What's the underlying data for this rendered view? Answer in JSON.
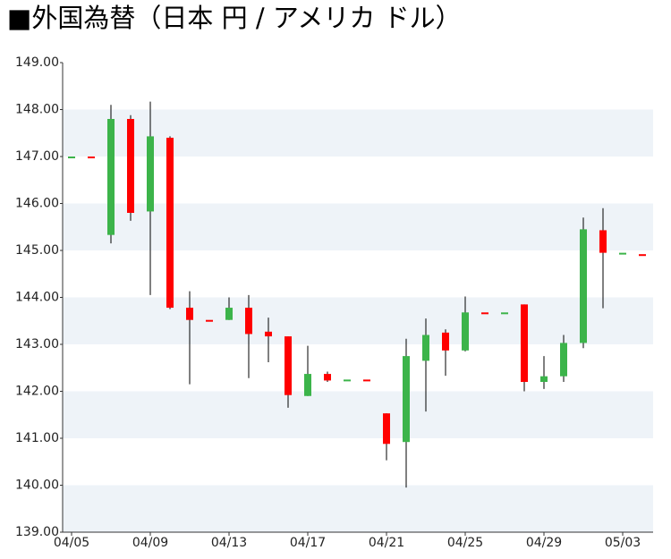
{
  "chart_data": {
    "type": "candlestick",
    "title": "■外国為替（日本 円 / アメリカ ドル）",
    "categories": [
      "04/05",
      null,
      null,
      null,
      "04/09",
      null,
      null,
      null,
      "04/13",
      null,
      null,
      null,
      "04/17",
      null,
      null,
      null,
      "04/21",
      null,
      null,
      null,
      "04/25",
      null,
      null,
      null,
      "04/29",
      null,
      null,
      null,
      "05/03",
      null
    ],
    "open": [
      147.0,
      147.0,
      145.33,
      147.8,
      145.83,
      147.4,
      143.78,
      143.52,
      143.52,
      143.78,
      143.27,
      143.17,
      141.9,
      142.37,
      142.25,
      142.25,
      141.53,
      140.92,
      142.65,
      143.25,
      142.87,
      143.68,
      143.68,
      143.85,
      142.2,
      142.32,
      143.03,
      145.43,
      144.95,
      144.92
    ],
    "high": [
      147.0,
      147.0,
      148.1,
      147.88,
      148.17,
      147.43,
      144.13,
      143.52,
      144.0,
      144.05,
      143.57,
      143.17,
      142.97,
      142.42,
      142.25,
      142.25,
      141.53,
      143.12,
      143.55,
      143.32,
      144.02,
      143.68,
      143.68,
      143.85,
      142.75,
      143.2,
      145.7,
      145.9,
      144.95,
      144.92
    ],
    "low": [
      147.0,
      147.0,
      145.15,
      145.63,
      144.05,
      143.75,
      142.15,
      143.52,
      143.52,
      142.28,
      142.62,
      141.65,
      141.9,
      142.2,
      142.25,
      142.25,
      140.53,
      139.95,
      141.57,
      142.33,
      142.85,
      143.68,
      143.68,
      142.0,
      142.05,
      142.2,
      142.92,
      143.77,
      144.95,
      144.92
    ],
    "close": [
      147.0,
      147.0,
      147.8,
      145.8,
      147.43,
      143.78,
      143.52,
      143.52,
      143.78,
      143.22,
      143.17,
      141.92,
      142.37,
      142.23,
      142.25,
      142.25,
      140.88,
      142.75,
      143.2,
      142.87,
      143.68,
      143.68,
      143.68,
      142.2,
      142.32,
      143.03,
      145.45,
      144.95,
      144.95,
      144.92
    ],
    "up_color": "#3cb44a",
    "down_color": "#ff0000",
    "ylim": [
      139,
      149
    ],
    "yticks": [
      {
        "value": 139,
        "label": "139.00"
      },
      {
        "value": 140,
        "label": "140.00"
      },
      {
        "value": 141,
        "label": "141.00"
      },
      {
        "value": 142,
        "label": "142.00"
      },
      {
        "value": 143,
        "label": "143.00"
      },
      {
        "value": 144,
        "label": "144.00"
      },
      {
        "value": 145,
        "label": "145.00"
      },
      {
        "value": 146,
        "label": "146.00"
      },
      {
        "value": 147,
        "label": "147.00"
      },
      {
        "value": 148,
        "label": "148.00"
      },
      {
        "value": 149,
        "label": "149.00"
      }
    ],
    "grid_bands": true
  }
}
